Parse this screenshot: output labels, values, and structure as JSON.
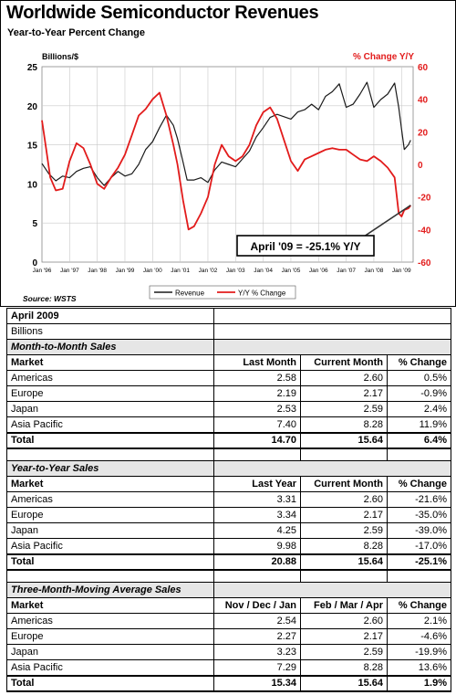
{
  "chart": {
    "title": "Worldwide Semiconductor Revenues",
    "subtitle": "Year-to-Year Percent Change",
    "source": "Source: WSTS",
    "annotation": "April '09 = -25.1% Y/Y",
    "colors": {
      "revenue": "#1a1a1a",
      "yy": "#e21b1b",
      "right_axis": "#e21b1b",
      "annotation_bg": "#ffffff"
    },
    "legend": {
      "placement": "bottom-center"
    }
  },
  "chart_data": {
    "type": "line",
    "x_ticks": [
      "Jan '96",
      "Jan '97",
      "Jan '98",
      "Jan '99",
      "Jan '00",
      "Jan '01",
      "Jan '02",
      "Jan '03",
      "Jan '04",
      "Jan '05",
      "Jan '06",
      "Jan '07",
      "Jan '08",
      "Jan '09"
    ],
    "x_range": [
      1996.0,
      2009.42
    ],
    "y_left": {
      "label": "Billions/$",
      "range": [
        0,
        25
      ],
      "ticks": [
        "0",
        "5",
        "10",
        "15",
        "20",
        "25"
      ]
    },
    "y_right": {
      "label": "% Change Y/Y",
      "range": [
        -60,
        60
      ],
      "ticks": [
        "-60",
        "-40",
        "-20",
        "0",
        "20",
        "40",
        "60"
      ]
    },
    "grid": true,
    "series": [
      {
        "name": "Revenue",
        "axis": "left",
        "x": [
          1996.0,
          1996.25,
          1996.5,
          1996.75,
          1997.0,
          1997.25,
          1997.5,
          1997.75,
          1998.0,
          1998.25,
          1998.5,
          1998.75,
          1999.0,
          1999.25,
          1999.5,
          1999.75,
          2000.0,
          2000.25,
          2000.5,
          2000.75,
          2000.9,
          2001.1,
          2001.25,
          2001.5,
          2001.75,
          2002.0,
          2002.25,
          2002.5,
          2002.75,
          2003.0,
          2003.25,
          2003.5,
          2003.75,
          2004.0,
          2004.25,
          2004.5,
          2004.75,
          2005.0,
          2005.25,
          2005.5,
          2005.75,
          2006.0,
          2006.25,
          2006.5,
          2006.75,
          2007.0,
          2007.25,
          2007.5,
          2007.75,
          2008.0,
          2008.25,
          2008.5,
          2008.75,
          2008.9,
          2009.0,
          2009.1,
          2009.25,
          2009.33
        ],
        "values": [
          12.6,
          11.3,
          10.4,
          11.0,
          10.8,
          11.6,
          12.0,
          12.2,
          10.8,
          9.8,
          10.8,
          11.6,
          11.0,
          11.3,
          12.5,
          14.4,
          15.4,
          17.2,
          18.8,
          17.5,
          15.8,
          12.8,
          10.5,
          10.5,
          10.8,
          10.2,
          11.8,
          12.8,
          12.5,
          12.2,
          13.2,
          14.2,
          16.0,
          17.2,
          18.5,
          18.9,
          18.6,
          18.3,
          19.2,
          19.5,
          20.2,
          19.5,
          21.2,
          21.8,
          22.8,
          19.8,
          20.2,
          21.5,
          23.0,
          19.8,
          20.8,
          21.5,
          22.9,
          19.8,
          17.0,
          14.4,
          15.0,
          15.6
        ]
      },
      {
        "name": "Y/Y % Change",
        "axis": "right",
        "x": [
          1996.0,
          1996.15,
          1996.3,
          1996.5,
          1996.75,
          1997.0,
          1997.25,
          1997.5,
          1997.75,
          1998.0,
          1998.25,
          1998.5,
          1998.75,
          1999.0,
          1999.25,
          1999.5,
          1999.75,
          2000.0,
          2000.25,
          2000.5,
          2000.75,
          2000.9,
          2001.1,
          2001.3,
          2001.5,
          2001.75,
          2002.0,
          2002.25,
          2002.5,
          2002.75,
          2003.0,
          2003.25,
          2003.5,
          2003.75,
          2004.0,
          2004.25,
          2004.5,
          2004.75,
          2005.0,
          2005.25,
          2005.5,
          2005.75,
          2006.0,
          2006.25,
          2006.5,
          2006.75,
          2007.0,
          2007.25,
          2007.5,
          2007.75,
          2008.0,
          2008.25,
          2008.5,
          2008.75,
          2008.9,
          2009.0,
          2009.1,
          2009.25,
          2009.33
        ],
        "values": [
          27,
          10,
          -8,
          -16,
          -15,
          2,
          13,
          10,
          0,
          -12,
          -15,
          -8,
          -2,
          6,
          18,
          30,
          34,
          40,
          44,
          30,
          12,
          0,
          -22,
          -40,
          -38,
          -30,
          -20,
          0,
          12,
          5,
          2,
          5,
          12,
          24,
          32,
          35,
          28,
          15,
          2,
          -4,
          3,
          5,
          7,
          9,
          10,
          9,
          9,
          6,
          3,
          2,
          5,
          2,
          -2,
          -8,
          -30,
          -32,
          -28,
          -27,
          -25.1
        ]
      }
    ]
  },
  "tables": {
    "top_rows": [
      "April 2009",
      "Billions"
    ],
    "month_to_month": {
      "section_title": "Month-to-Month Sales",
      "headers": [
        "Market",
        "Last Month",
        "Current Month",
        "% Change"
      ],
      "rows": [
        [
          "Americas",
          "2.58",
          "2.60",
          "0.5%"
        ],
        [
          "Europe",
          "2.19",
          "2.17",
          "-0.9%"
        ],
        [
          "Japan",
          "2.53",
          "2.59",
          "2.4%"
        ],
        [
          "Asia Pacific",
          "7.40",
          "8.28",
          "11.9%"
        ]
      ],
      "total": [
        "Total",
        "14.70",
        "15.64",
        "6.4%"
      ]
    },
    "year_to_year": {
      "section_title": "Year-to-Year Sales",
      "headers": [
        "Market",
        "Last Year",
        "Current Month",
        "% Change"
      ],
      "rows": [
        [
          "Americas",
          "3.31",
          "2.60",
          "-21.6%"
        ],
        [
          "Europe",
          "3.34",
          "2.17",
          "-35.0%"
        ],
        [
          "Japan",
          "4.25",
          "2.59",
          "-39.0%"
        ],
        [
          "Asia Pacific",
          "9.98",
          "8.28",
          "-17.0%"
        ]
      ],
      "total": [
        "Total",
        "20.88",
        "15.64",
        "-25.1%"
      ]
    },
    "three_month": {
      "section_title": "Three-Month-Moving Average Sales",
      "headers": [
        "Market",
        "Nov / Dec / Jan",
        "Feb / Mar / Apr",
        "% Change"
      ],
      "rows": [
        [
          "Americas",
          "2.54",
          "2.60",
          "2.1%"
        ],
        [
          "Europe",
          "2.27",
          "2.17",
          "-4.6%"
        ],
        [
          "Japan",
          "3.23",
          "2.59",
          "-19.9%"
        ],
        [
          "Asia Pacific",
          "7.29",
          "8.28",
          "13.6%"
        ]
      ],
      "total": [
        "Total",
        "15.34",
        "15.64",
        "1.9%"
      ]
    }
  }
}
